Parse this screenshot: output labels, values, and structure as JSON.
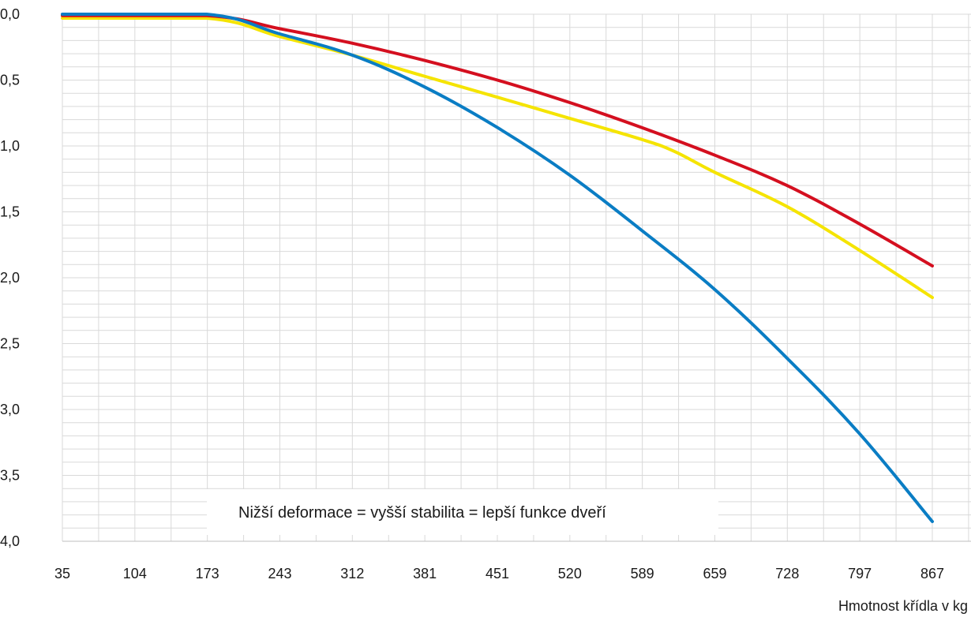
{
  "chart_data": {
    "type": "line",
    "title": "",
    "xlabel": "Hmotnost křídla v kg",
    "ylabel": "",
    "x_ticks": [
      "35",
      "104",
      "173",
      "243",
      "312",
      "381",
      "451",
      "520",
      "589",
      "659",
      "728",
      "797",
      "867"
    ],
    "y_ticks": [
      "0,0",
      "0,5",
      "1,0",
      "1,5",
      "2,0",
      "2,5",
      "3,0",
      "3,5",
      "4,0"
    ],
    "xlim": [
      35,
      867
    ],
    "ylim": [
      0,
      4
    ],
    "y_inverted": true,
    "grid": true,
    "legend": "none",
    "annotation": "Nižší deformace = vyšší stabilita = lepší funkce dveří",
    "series": [
      {
        "color": "#f5e400",
        "x": [
          35,
          173,
          243,
          312,
          381,
          451,
          520,
          589,
          620,
          659,
          728,
          797,
          867
        ],
        "values": [
          0.03,
          0.03,
          0.17,
          0.31,
          0.47,
          0.63,
          0.79,
          0.95,
          1.04,
          1.2,
          1.46,
          1.79,
          2.15
        ]
      },
      {
        "color": "#d40f1f",
        "x": [
          35,
          173,
          243,
          312,
          381,
          451,
          520,
          589,
          659,
          728,
          797,
          867
        ],
        "values": [
          0.01,
          0.01,
          0.11,
          0.22,
          0.35,
          0.5,
          0.67,
          0.86,
          1.07,
          1.3,
          1.59,
          1.91
        ]
      },
      {
        "color": "#0a7dc4",
        "x": [
          35,
          173,
          243,
          312,
          381,
          451,
          520,
          589,
          659,
          728,
          797,
          867
        ],
        "values": [
          0.0,
          0.0,
          0.15,
          0.31,
          0.55,
          0.86,
          1.22,
          1.64,
          2.09,
          2.61,
          3.18,
          3.85
        ]
      }
    ]
  }
}
